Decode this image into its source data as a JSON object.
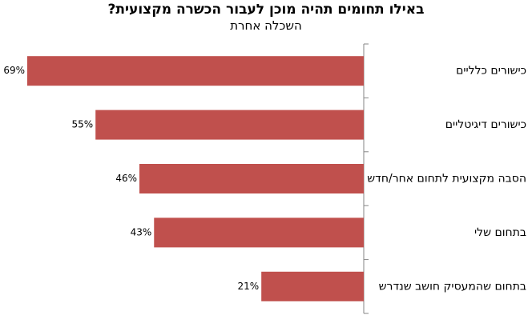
{
  "chart_data": {
    "type": "bar",
    "orientation": "horizontal",
    "title": "באילו תחומים תהיה מוכן לעבור הכשרה מקצועית?",
    "subtitle": "השכלה אחרת",
    "categories": [
      "כישורים כלליים",
      "כישורים דיגיטליים",
      "הסבה מקצועית לתחום אחר/חדש",
      "בתחום שלי",
      "בתחום שהמעסיק חושב שנדרש"
    ],
    "values": [
      69,
      55,
      46,
      43,
      21
    ],
    "value_labels": [
      "69%",
      "55%",
      "46%",
      "43%",
      "21%"
    ],
    "bar_color": "#c0504d",
    "axis_color": "#868686",
    "xlim": [
      0,
      70
    ],
    "grid": false,
    "legend": "none"
  }
}
